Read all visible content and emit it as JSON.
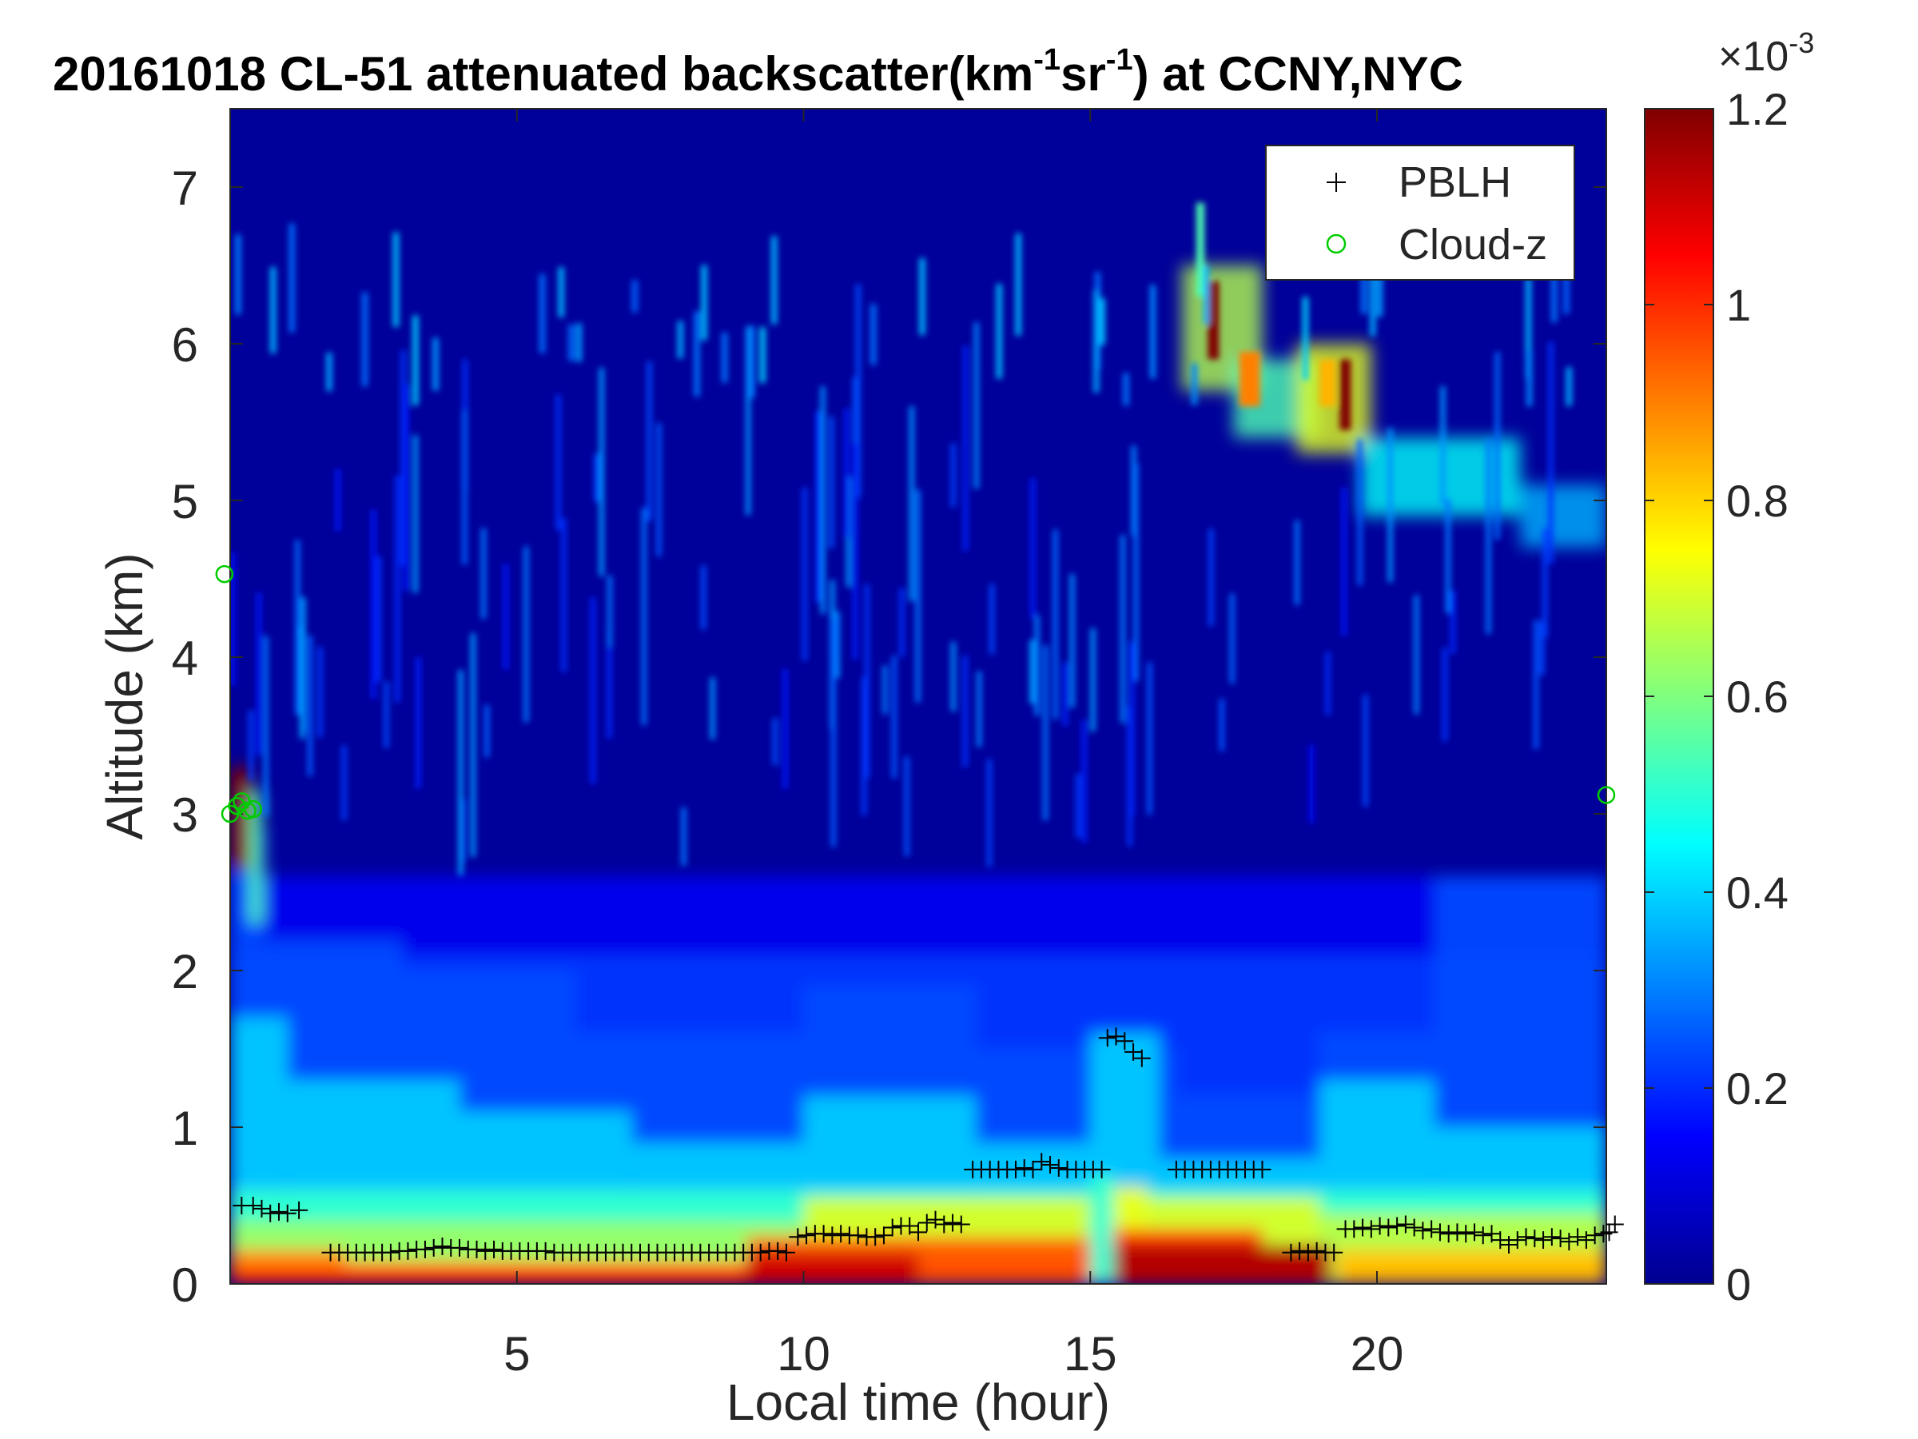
{
  "chart_data": {
    "type": "heatmap",
    "title_main": "20161018  CL-51 attenuated backscatter(km",
    "title_sup1": "-1",
    "title_mid": "sr",
    "title_sup2": "-1",
    "title_end": ") at CCNY,NYC",
    "xlabel": "Local time (hour)",
    "ylabel": "Altitude (km)",
    "xlim": [
      0,
      24
    ],
    "ylim": [
      0,
      7.5
    ],
    "xticks": [
      5,
      10,
      15,
      20
    ],
    "yticks": [
      0,
      1,
      2,
      3,
      4,
      5,
      6,
      7
    ],
    "colorbar": {
      "range": [
        0,
        1.2
      ],
      "ticks": [
        0,
        0.2,
        0.4,
        0.6,
        0.8,
        1,
        1.2
      ],
      "tick_labels": [
        "0",
        "0.2",
        "0.4",
        "0.6",
        "0.8",
        "1",
        "1.2"
      ],
      "exponent_base": "×10",
      "exponent": "-3",
      "colormap": "jet"
    },
    "legend": {
      "position": "top-right",
      "entries": [
        {
          "label": "PBLH",
          "marker": "+",
          "color": "#000000"
        },
        {
          "label": "Cloud-z",
          "marker": "o",
          "color": "#00cc00"
        }
      ]
    },
    "pblh": [
      [
        0.2,
        0.5
      ],
      [
        0.4,
        0.5
      ],
      [
        0.55,
        0.48
      ],
      [
        0.7,
        0.45
      ],
      [
        0.85,
        0.46
      ],
      [
        1.0,
        0.45
      ],
      [
        1.2,
        0.47
      ],
      [
        1.75,
        0.2
      ],
      [
        1.9,
        0.2
      ],
      [
        2.05,
        0.2
      ],
      [
        2.2,
        0.2
      ],
      [
        2.35,
        0.2
      ],
      [
        2.5,
        0.2
      ],
      [
        2.65,
        0.2
      ],
      [
        2.8,
        0.2
      ],
      [
        2.95,
        0.21
      ],
      [
        3.1,
        0.21
      ],
      [
        3.25,
        0.22
      ],
      [
        3.4,
        0.22
      ],
      [
        3.55,
        0.23
      ],
      [
        3.7,
        0.24
      ],
      [
        3.85,
        0.23
      ],
      [
        4.0,
        0.23
      ],
      [
        4.15,
        0.22
      ],
      [
        4.3,
        0.22
      ],
      [
        4.45,
        0.21
      ],
      [
        4.6,
        0.22
      ],
      [
        4.75,
        0.21
      ],
      [
        4.9,
        0.21
      ],
      [
        5.05,
        0.21
      ],
      [
        5.2,
        0.21
      ],
      [
        5.35,
        0.21
      ],
      [
        5.5,
        0.21
      ],
      [
        5.65,
        0.2
      ],
      [
        5.8,
        0.2
      ],
      [
        5.95,
        0.2
      ],
      [
        6.1,
        0.2
      ],
      [
        6.25,
        0.2
      ],
      [
        6.4,
        0.2
      ],
      [
        6.55,
        0.2
      ],
      [
        6.7,
        0.2
      ],
      [
        6.85,
        0.2
      ],
      [
        7.0,
        0.2
      ],
      [
        7.15,
        0.2
      ],
      [
        7.3,
        0.2
      ],
      [
        7.45,
        0.2
      ],
      [
        7.6,
        0.2
      ],
      [
        7.75,
        0.2
      ],
      [
        7.9,
        0.2
      ],
      [
        8.05,
        0.2
      ],
      [
        8.2,
        0.2
      ],
      [
        8.35,
        0.2
      ],
      [
        8.5,
        0.2
      ],
      [
        8.65,
        0.2
      ],
      [
        8.8,
        0.2
      ],
      [
        8.95,
        0.2
      ],
      [
        9.1,
        0.2
      ],
      [
        9.25,
        0.2
      ],
      [
        9.4,
        0.21
      ],
      [
        9.55,
        0.21
      ],
      [
        9.7,
        0.2
      ],
      [
        9.9,
        0.3
      ],
      [
        10.05,
        0.31
      ],
      [
        10.2,
        0.32
      ],
      [
        10.35,
        0.32
      ],
      [
        10.5,
        0.31
      ],
      [
        10.65,
        0.32
      ],
      [
        10.8,
        0.31
      ],
      [
        10.95,
        0.31
      ],
      [
        11.1,
        0.3
      ],
      [
        11.25,
        0.3
      ],
      [
        11.4,
        0.31
      ],
      [
        11.55,
        0.36
      ],
      [
        11.7,
        0.37
      ],
      [
        11.85,
        0.37
      ],
      [
        12.0,
        0.33
      ],
      [
        12.15,
        0.39
      ],
      [
        12.3,
        0.41
      ],
      [
        12.45,
        0.38
      ],
      [
        12.6,
        0.39
      ],
      [
        12.75,
        0.38
      ],
      [
        12.95,
        0.73
      ],
      [
        13.1,
        0.73
      ],
      [
        13.25,
        0.73
      ],
      [
        13.4,
        0.73
      ],
      [
        13.55,
        0.73
      ],
      [
        13.7,
        0.73
      ],
      [
        13.85,
        0.74
      ],
      [
        14.0,
        0.73
      ],
      [
        14.15,
        0.78
      ],
      [
        14.3,
        0.76
      ],
      [
        14.45,
        0.74
      ],
      [
        14.6,
        0.73
      ],
      [
        14.75,
        0.73
      ],
      [
        14.9,
        0.73
      ],
      [
        15.05,
        0.73
      ],
      [
        15.2,
        0.73
      ],
      [
        15.3,
        1.57
      ],
      [
        15.45,
        1.58
      ],
      [
        15.6,
        1.55
      ],
      [
        15.75,
        1.48
      ],
      [
        15.9,
        1.44
      ],
      [
        16.5,
        0.73
      ],
      [
        16.65,
        0.73
      ],
      [
        16.8,
        0.73
      ],
      [
        16.95,
        0.73
      ],
      [
        17.1,
        0.73
      ],
      [
        17.25,
        0.73
      ],
      [
        17.4,
        0.73
      ],
      [
        17.55,
        0.73
      ],
      [
        17.7,
        0.73
      ],
      [
        17.85,
        0.73
      ],
      [
        18.0,
        0.73
      ],
      [
        18.5,
        0.2
      ],
      [
        18.65,
        0.21
      ],
      [
        18.8,
        0.2
      ],
      [
        18.95,
        0.21
      ],
      [
        19.1,
        0.2
      ],
      [
        19.25,
        0.2
      ],
      [
        19.45,
        0.35
      ],
      [
        19.6,
        0.35
      ],
      [
        19.75,
        0.36
      ],
      [
        19.9,
        0.35
      ],
      [
        20.05,
        0.37
      ],
      [
        20.2,
        0.36
      ],
      [
        20.35,
        0.37
      ],
      [
        20.5,
        0.38
      ],
      [
        20.65,
        0.36
      ],
      [
        20.8,
        0.34
      ],
      [
        20.95,
        0.35
      ],
      [
        21.1,
        0.33
      ],
      [
        21.25,
        0.32
      ],
      [
        21.4,
        0.33
      ],
      [
        21.55,
        0.32
      ],
      [
        21.7,
        0.33
      ],
      [
        21.85,
        0.31
      ],
      [
        22.0,
        0.32
      ],
      [
        22.15,
        0.28
      ],
      [
        22.3,
        0.25
      ],
      [
        22.45,
        0.28
      ],
      [
        22.6,
        0.3
      ],
      [
        22.75,
        0.29
      ],
      [
        22.9,
        0.28
      ],
      [
        23.05,
        0.3
      ],
      [
        23.2,
        0.29
      ],
      [
        23.35,
        0.27
      ],
      [
        23.5,
        0.3
      ],
      [
        23.65,
        0.28
      ],
      [
        23.8,
        0.31
      ],
      [
        23.95,
        0.32
      ],
      [
        24.05,
        0.33
      ],
      [
        24.15,
        0.38
      ]
    ],
    "cloud_z": [
      [
        -0.1,
        4.53
      ],
      [
        0.0,
        3.0
      ],
      [
        0.12,
        3.05
      ],
      [
        0.2,
        3.08
      ],
      [
        0.3,
        3.02
      ],
      [
        0.4,
        3.03
      ],
      [
        24.0,
        3.12
      ]
    ]
  }
}
